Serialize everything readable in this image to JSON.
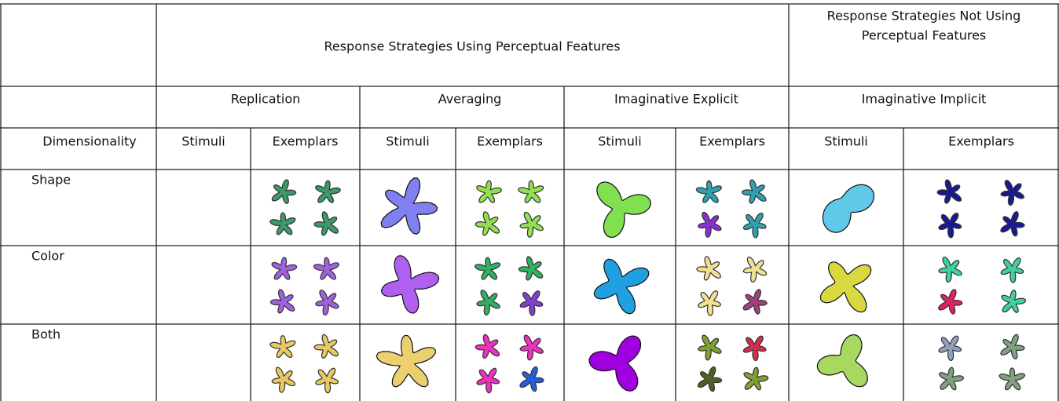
{
  "table": {
    "header": {
      "group_row": [
        "Response Strategies Using Perceptual Features",
        "Response Strategies Not Using",
        "Perceptual Features"
      ],
      "strategy_row": [
        "Replication",
        "Averaging",
        "Imaginative Explicit",
        "Imaginative Implicit"
      ],
      "column_row": [
        "Dimensionality",
        "Stimuli",
        "Exemplars",
        "Stimuli",
        "Exemplars",
        "Stimuli",
        "Exemplars",
        "Stimuli",
        "Exemplars"
      ]
    },
    "rows": [
      "Shape",
      "Color",
      "Both"
    ]
  }
}
